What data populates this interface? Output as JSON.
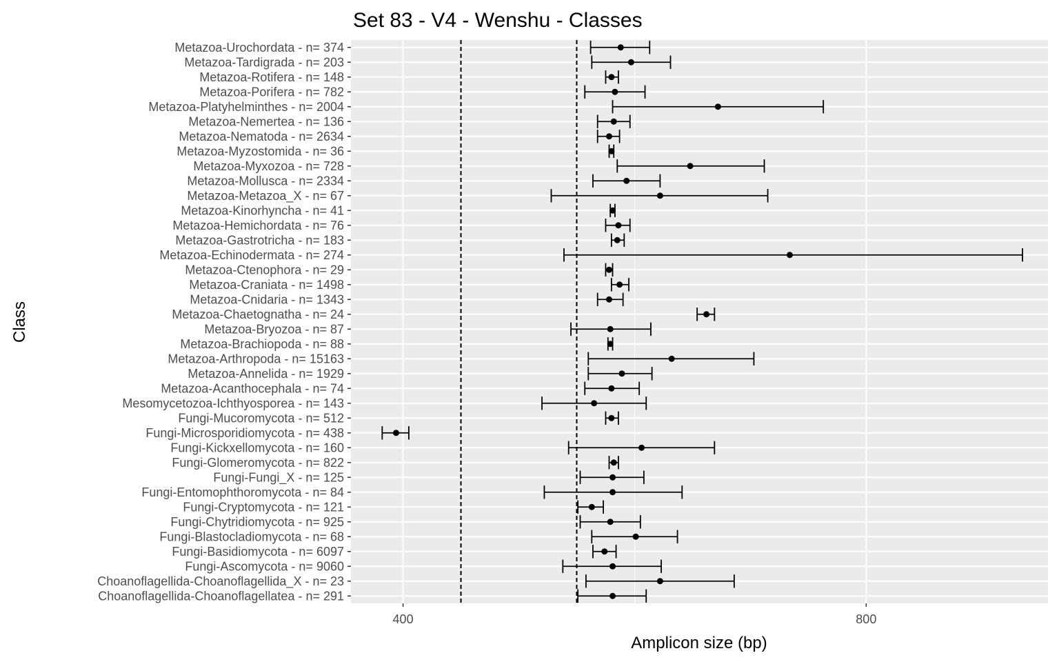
{
  "chart_data": {
    "type": "errorbar",
    "title": "Set 83 - V4 - Wenshu - Classes",
    "xlabel": "Amplicon size (bp)",
    "ylabel": "Class",
    "xlim": [
      355,
      957
    ],
    "xticks": [
      400,
      800
    ],
    "xtick_labels": [
      "400",
      "800"
    ],
    "reference_lines": [
      450,
      550
    ],
    "grid": true,
    "colors": {
      "panel": "#ebebeb",
      "grid": "#ffffff",
      "point": "#000000",
      "ref_line": "#000000",
      "tick_text": "#4d4d4d"
    },
    "categories": [
      "Metazoa-Urochordata - n= 374",
      "Metazoa-Tardigrada - n= 203",
      "Metazoa-Rotifera - n= 148",
      "Metazoa-Porifera - n= 782",
      "Metazoa-Platyhelminthes - n= 2004",
      "Metazoa-Nemertea - n= 136",
      "Metazoa-Nematoda - n= 2634",
      "Metazoa-Myzostomida - n= 36",
      "Metazoa-Myxozoa - n= 728",
      "Metazoa-Mollusca - n= 2334",
      "Metazoa-Metazoa_X - n= 67",
      "Metazoa-Kinorhyncha - n= 41",
      "Metazoa-Hemichordata - n= 76",
      "Metazoa-Gastrotricha - n= 183",
      "Metazoa-Echinodermata - n= 274",
      "Metazoa-Ctenophora - n= 29",
      "Metazoa-Craniata - n= 1498",
      "Metazoa-Cnidaria - n= 1343",
      "Metazoa-Chaetognatha - n= 24",
      "Metazoa-Bryozoa - n= 87",
      "Metazoa-Brachiopoda - n= 88",
      "Metazoa-Arthropoda - n= 15163",
      "Metazoa-Annelida - n= 1929",
      "Metazoa-Acanthocephala - n= 74",
      "Mesomycetozoa-Ichthyosporea - n= 143",
      "Fungi-Mucoromycota - n= 512",
      "Fungi-Microsporidiomycota - n= 438",
      "Fungi-Kickxellomycota - n= 160",
      "Fungi-Glomeromycota - n= 822",
      "Fungi-Fungi_X - n= 125",
      "Fungi-Entomophthoromycota - n= 84",
      "Fungi-Cryptomycota - n= 121",
      "Fungi-Chytridiomycota - n= 925",
      "Fungi-Blastocladiomycota - n= 68",
      "Fungi-Basidiomycota - n= 6097",
      "Fungi-Ascomycota - n= 9060",
      "Choanoflagellida-Choanoflagellida_X - n= 23",
      "Choanoflagellida-Choanoflagellatea - n= 291"
    ],
    "mean": [
      588,
      597,
      580,
      583,
      672,
      582,
      578,
      580,
      648,
      593,
      622,
      581,
      586,
      585,
      734,
      578,
      587,
      578,
      662,
      579,
      579,
      632,
      589,
      580,
      565,
      580,
      394,
      606,
      582,
      581,
      581,
      563,
      579,
      601,
      574,
      581,
      622,
      581
    ],
    "low": [
      562,
      563,
      575,
      557,
      581,
      568,
      568,
      578,
      585,
      564,
      528,
      579,
      575,
      580,
      539,
      575,
      580,
      568,
      654,
      545,
      577,
      560,
      560,
      557,
      520,
      575,
      382,
      543,
      578,
      553,
      522,
      551,
      553,
      563,
      564,
      538,
      558,
      551
    ],
    "high": [
      613,
      631,
      586,
      609,
      763,
      596,
      587,
      582,
      712,
      622,
      715,
      583,
      596,
      591,
      935,
      581,
      595,
      590,
      669,
      614,
      581,
      703,
      615,
      604,
      610,
      586,
      405,
      669,
      586,
      608,
      641,
      573,
      605,
      637,
      584,
      623,
      686,
      610
    ]
  }
}
